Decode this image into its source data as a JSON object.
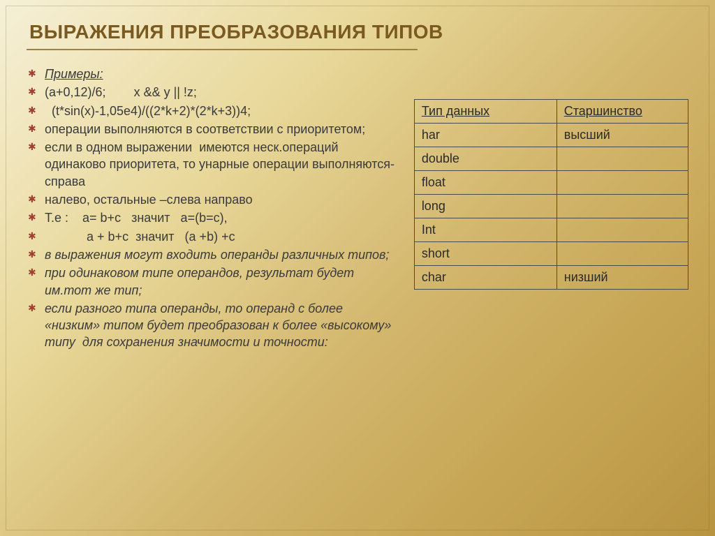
{
  "title": "ВЫРАЖЕНИЯ ПРЕОБРАЗОВАНИЯ ТИПОВ",
  "bullets": [
    {
      "text": "Примеры:",
      "italic": true,
      "underline": true
    },
    {
      "text": "(a+0,12)/6;        x && y || !z;"
    },
    {
      "text": "  (t*sin(x)-1,05e4)/((2*k+2)*(2*k+3))4;"
    },
    {
      "text": "операции выполняются в соответствии с приоритетом;"
    },
    {
      "text": "если в одном выражении  имеются неск.операций одинаково приоритета, то унарные операции выполняются- справа"
    },
    {
      "text": "налево, остальные –слева направо"
    },
    {
      "text": "Т.е :    a= b+c   значит   a=(b=c),"
    },
    {
      "text": "            a + b+c  значит   (a +b) +c"
    },
    {
      "text": "в выражения могут входить операнды различных типов;",
      "italic": true
    },
    {
      "text": "при одинаковом типе операндов, результат будет им.тот же тип;",
      "italic": true
    },
    {
      "text": "если разного типа операнды, то операнд с более «низким» типом будет преобразован к более «высокому» типу  для сохранения значимости и точности:",
      "italic": true
    }
  ],
  "table": {
    "headers": [
      "Тип данных",
      "Старшинство"
    ],
    "rows": [
      [
        "har",
        "высший"
      ],
      [
        "double",
        ""
      ],
      [
        "float",
        ""
      ],
      [
        "long",
        ""
      ],
      [
        "Int",
        ""
      ],
      [
        "short",
        ""
      ],
      [
        "char",
        "низший"
      ]
    ]
  },
  "styling": {
    "title_color": "#7a5a20",
    "title_fontsize": 28,
    "bullet_marker_color": "#a04030",
    "body_fontsize": 18,
    "body_color": "#3a3a3a",
    "table_border_color": "#4a4a4a",
    "table_fontsize": 18,
    "underline_color": "#a08040",
    "background_gradient": [
      "#f5f0d8",
      "#f0e4b8",
      "#e8d89a",
      "#d4b870",
      "#c8a858",
      "#b89440"
    ]
  }
}
